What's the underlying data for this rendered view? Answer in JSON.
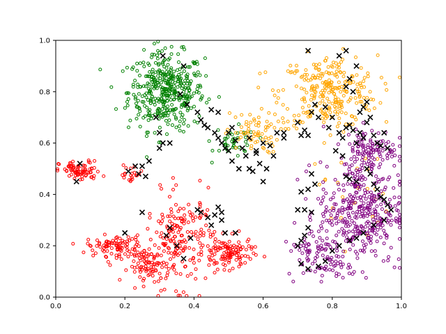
{
  "chart_data": {
    "type": "scatter",
    "title": "",
    "xlabel": "",
    "ylabel": "",
    "xlim": [
      0.0,
      1.0
    ],
    "ylim": [
      0.0,
      1.0
    ],
    "grid": false,
    "legend": "none",
    "x_ticks": [
      "0.0",
      "0.2",
      "0.4",
      "0.6",
      "0.8",
      "1.0"
    ],
    "y_ticks": [
      "0.0",
      "0.2",
      "0.4",
      "0.6",
      "0.8",
      "1.0"
    ],
    "series": [
      {
        "color": "#008000",
        "marker": "hollow-circle",
        "clusters": [
          {
            "cx": 0.32,
            "cy": 0.8,
            "sx": 0.055,
            "sy": 0.075,
            "n": 420
          },
          {
            "cx": 0.52,
            "cy": 0.6,
            "sx": 0.03,
            "sy": 0.03,
            "n": 40
          }
        ]
      },
      {
        "color": "#FFA500",
        "marker": "hollow-circle",
        "clusters": [
          {
            "cx": 0.79,
            "cy": 0.8,
            "sx": 0.07,
            "sy": 0.07,
            "n": 280
          },
          {
            "cx": 0.57,
            "cy": 0.64,
            "sx": 0.04,
            "sy": 0.04,
            "n": 70
          },
          {
            "cx": 0.86,
            "cy": 0.4,
            "sx": 0.05,
            "sy": 0.1,
            "n": 25
          }
        ]
      },
      {
        "color": "#FF0000",
        "marker": "hollow-circle",
        "clusters": [
          {
            "cx": 0.07,
            "cy": 0.49,
            "sx": 0.03,
            "sy": 0.02,
            "n": 80
          },
          {
            "cx": 0.17,
            "cy": 0.2,
            "sx": 0.04,
            "sy": 0.02,
            "n": 90
          },
          {
            "cx": 0.27,
            "cy": 0.12,
            "sx": 0.03,
            "sy": 0.03,
            "n": 80
          },
          {
            "cx": 0.36,
            "cy": 0.22,
            "sx": 0.05,
            "sy": 0.09,
            "n": 200
          },
          {
            "cx": 0.5,
            "cy": 0.17,
            "sx": 0.035,
            "sy": 0.03,
            "n": 110
          },
          {
            "cx": 0.22,
            "cy": 0.48,
            "sx": 0.02,
            "sy": 0.02,
            "n": 20
          }
        ]
      },
      {
        "color": "#800080",
        "marker": "hollow-circle",
        "clusters": [
          {
            "cx": 0.88,
            "cy": 0.33,
            "sx": 0.06,
            "sy": 0.1,
            "n": 380
          },
          {
            "cx": 0.91,
            "cy": 0.58,
            "sx": 0.04,
            "sy": 0.04,
            "n": 110
          },
          {
            "cx": 0.74,
            "cy": 0.18,
            "sx": 0.035,
            "sy": 0.05,
            "n": 60
          },
          {
            "cx": 0.8,
            "cy": 0.12,
            "sx": 0.03,
            "sy": 0.02,
            "n": 30
          }
        ]
      },
      {
        "color": "#000000",
        "marker": "x",
        "points": [
          [
            0.06,
            0.45
          ],
          [
            0.07,
            0.52
          ],
          [
            0.2,
            0.25
          ],
          [
            0.21,
            0.49
          ],
          [
            0.23,
            0.51
          ],
          [
            0.25,
            0.51
          ],
          [
            0.27,
            0.53
          ],
          [
            0.24,
            0.48
          ],
          [
            0.26,
            0.47
          ],
          [
            0.25,
            0.33
          ],
          [
            0.32,
            0.24
          ],
          [
            0.33,
            0.27
          ],
          [
            0.35,
            0.2
          ],
          [
            0.37,
            0.15
          ],
          [
            0.39,
            0.23
          ],
          [
            0.41,
            0.34
          ],
          [
            0.42,
            0.33
          ],
          [
            0.44,
            0.31
          ],
          [
            0.45,
            0.28
          ],
          [
            0.46,
            0.32
          ],
          [
            0.47,
            0.35
          ],
          [
            0.48,
            0.3
          ],
          [
            0.49,
            0.25
          ],
          [
            0.48,
            0.33
          ],
          [
            0.52,
            0.25
          ],
          [
            0.31,
            0.94
          ],
          [
            0.37,
            0.9
          ],
          [
            0.29,
            0.7
          ],
          [
            0.3,
            0.64
          ],
          [
            0.31,
            0.6
          ],
          [
            0.3,
            0.58
          ],
          [
            0.33,
            0.6
          ],
          [
            0.36,
            0.79
          ],
          [
            0.38,
            0.75
          ],
          [
            0.41,
            0.72
          ],
          [
            0.42,
            0.69
          ],
          [
            0.43,
            0.67
          ],
          [
            0.44,
            0.66
          ],
          [
            0.45,
            0.73
          ],
          [
            0.47,
            0.72
          ],
          [
            0.46,
            0.64
          ],
          [
            0.47,
            0.62
          ],
          [
            0.49,
            0.58
          ],
          [
            0.5,
            0.57
          ],
          [
            0.51,
            0.66
          ],
          [
            0.52,
            0.61
          ],
          [
            0.54,
            0.58
          ],
          [
            0.55,
            0.55
          ],
          [
            0.56,
            0.5
          ],
          [
            0.57,
            0.49
          ],
          [
            0.58,
            0.56
          ],
          [
            0.59,
            0.52
          ],
          [
            0.6,
            0.45
          ],
          [
            0.61,
            0.5
          ],
          [
            0.63,
            0.55
          ],
          [
            0.64,
            0.64
          ],
          [
            0.66,
            0.62
          ],
          [
            0.7,
            0.68
          ],
          [
            0.71,
            0.63
          ],
          [
            0.72,
            0.65
          ],
          [
            0.73,
            0.63
          ],
          [
            0.74,
            0.72
          ],
          [
            0.75,
            0.75
          ],
          [
            0.76,
            0.7
          ],
          [
            0.78,
            0.74
          ],
          [
            0.8,
            0.7
          ],
          [
            0.82,
            0.64
          ],
          [
            0.83,
            0.62
          ],
          [
            0.84,
            0.66
          ],
          [
            0.85,
            0.67
          ],
          [
            0.86,
            0.65
          ],
          [
            0.87,
            0.6
          ],
          [
            0.88,
            0.64
          ],
          [
            0.89,
            0.62
          ],
          [
            0.9,
            0.68
          ],
          [
            0.91,
            0.7
          ],
          [
            0.92,
            0.63
          ],
          [
            0.93,
            0.6
          ],
          [
            0.94,
            0.59
          ],
          [
            0.95,
            0.64
          ],
          [
            0.96,
            0.58
          ],
          [
            0.88,
            0.72
          ],
          [
            0.89,
            0.74
          ],
          [
            0.9,
            0.76
          ],
          [
            0.86,
            0.8
          ],
          [
            0.84,
            0.82
          ],
          [
            0.85,
            0.85
          ],
          [
            0.87,
            0.9
          ],
          [
            0.82,
            0.94
          ],
          [
            0.84,
            0.96
          ],
          [
            0.73,
            0.96
          ],
          [
            0.79,
            0.66
          ],
          [
            0.81,
            0.57
          ],
          [
            0.83,
            0.55
          ],
          [
            0.84,
            0.47
          ],
          [
            0.85,
            0.46
          ],
          [
            0.87,
            0.45
          ],
          [
            0.9,
            0.5
          ],
          [
            0.91,
            0.48
          ],
          [
            0.92,
            0.44
          ],
          [
            0.93,
            0.42
          ],
          [
            0.94,
            0.39
          ],
          [
            0.95,
            0.38
          ],
          [
            0.96,
            0.36
          ],
          [
            0.97,
            0.34
          ],
          [
            0.95,
            0.3
          ],
          [
            0.92,
            0.28
          ],
          [
            0.89,
            0.25
          ],
          [
            0.87,
            0.23
          ],
          [
            0.85,
            0.22
          ],
          [
            0.82,
            0.2
          ],
          [
            0.8,
            0.18
          ],
          [
            0.78,
            0.14
          ],
          [
            0.76,
            0.12
          ],
          [
            0.73,
            0.11
          ],
          [
            0.71,
            0.13
          ],
          [
            0.7,
            0.2
          ],
          [
            0.71,
            0.22
          ],
          [
            0.72,
            0.24
          ],
          [
            0.73,
            0.27
          ],
          [
            0.74,
            0.33
          ],
          [
            0.72,
            0.34
          ],
          [
            0.7,
            0.34
          ],
          [
            0.71,
            0.41
          ],
          [
            0.73,
            0.42
          ],
          [
            0.74,
            0.48
          ],
          [
            0.75,
            0.44
          ],
          [
            0.66,
            0.64
          ],
          [
            0.62,
            0.59
          ],
          [
            0.48,
            0.6
          ],
          [
            0.5,
            0.64
          ],
          [
            0.51,
            0.53
          ],
          [
            0.53,
            0.5
          ],
          [
            0.56,
            0.62
          ],
          [
            0.58,
            0.57
          ],
          [
            0.6,
            0.6
          ]
        ]
      }
    ]
  }
}
